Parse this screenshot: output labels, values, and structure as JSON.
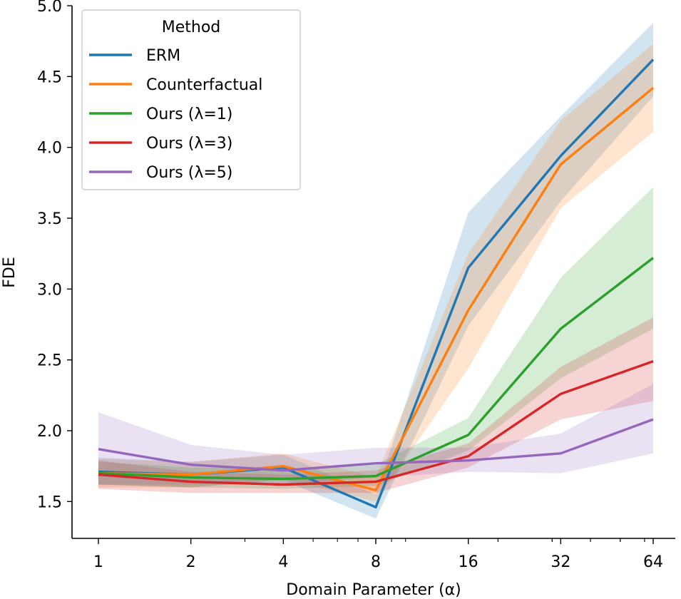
{
  "chart_data": {
    "type": "line",
    "xlabel": "Domain Parameter (α)",
    "ylabel": "FDE",
    "x": [
      1,
      2,
      4,
      8,
      16,
      32,
      64
    ],
    "x_tick_labels": [
      "1",
      "2",
      "4",
      "8",
      "16",
      "32",
      "64"
    ],
    "x_scale": "log2",
    "y_ticks": [
      1.5,
      2.0,
      2.5,
      3.0,
      3.5,
      4.0,
      4.5,
      5.0
    ],
    "y_tick_labels": [
      "1.5",
      "2.0",
      "2.5",
      "3.0",
      "3.5",
      "4.0",
      "4.5",
      "5.0"
    ],
    "ylim": [
      1.24,
      5.0
    ],
    "grid": false,
    "legend": {
      "title": "Method",
      "placement": "top-left"
    },
    "series": [
      {
        "name": "ERM",
        "color": "#1f77b4",
        "values": [
          1.71,
          1.69,
          1.74,
          1.46,
          3.15,
          3.94,
          4.62
        ],
        "lower": [
          1.62,
          1.6,
          1.65,
          1.38,
          2.74,
          3.62,
          4.36
        ],
        "upper": [
          1.81,
          1.78,
          1.83,
          1.55,
          3.54,
          4.22,
          4.88
        ]
      },
      {
        "name": "Counterfactual",
        "color": "#ff7f0e",
        "values": [
          1.7,
          1.69,
          1.75,
          1.58,
          2.85,
          3.88,
          4.42
        ],
        "lower": [
          1.6,
          1.6,
          1.66,
          1.5,
          2.44,
          3.57,
          4.11
        ],
        "upper": [
          1.8,
          1.78,
          1.84,
          1.67,
          3.25,
          4.19,
          4.73
        ]
      },
      {
        "name": "Ours (λ=1)",
        "color": "#2ca02c",
        "values": [
          1.7,
          1.67,
          1.66,
          1.68,
          1.97,
          2.72,
          3.22
        ],
        "lower": [
          1.62,
          1.6,
          1.59,
          1.61,
          1.86,
          2.37,
          2.72
        ],
        "upper": [
          1.78,
          1.74,
          1.73,
          1.76,
          2.09,
          3.08,
          3.72
        ]
      },
      {
        "name": "Ours (λ=3)",
        "color": "#d62728",
        "values": [
          1.69,
          1.64,
          1.62,
          1.64,
          1.82,
          2.26,
          2.49
        ],
        "lower": [
          1.59,
          1.56,
          1.56,
          1.56,
          1.74,
          2.08,
          2.21
        ],
        "upper": [
          1.79,
          1.71,
          1.69,
          1.72,
          1.91,
          2.45,
          2.8
        ]
      },
      {
        "name": "Ours (λ=5)",
        "color": "#9467bd",
        "values": [
          1.87,
          1.76,
          1.72,
          1.77,
          1.79,
          1.84,
          2.08
        ],
        "lower": [
          1.62,
          1.62,
          1.62,
          1.67,
          1.71,
          1.7,
          1.84
        ],
        "upper": [
          2.13,
          1.9,
          1.83,
          1.88,
          1.88,
          1.98,
          2.33
        ]
      }
    ]
  }
}
